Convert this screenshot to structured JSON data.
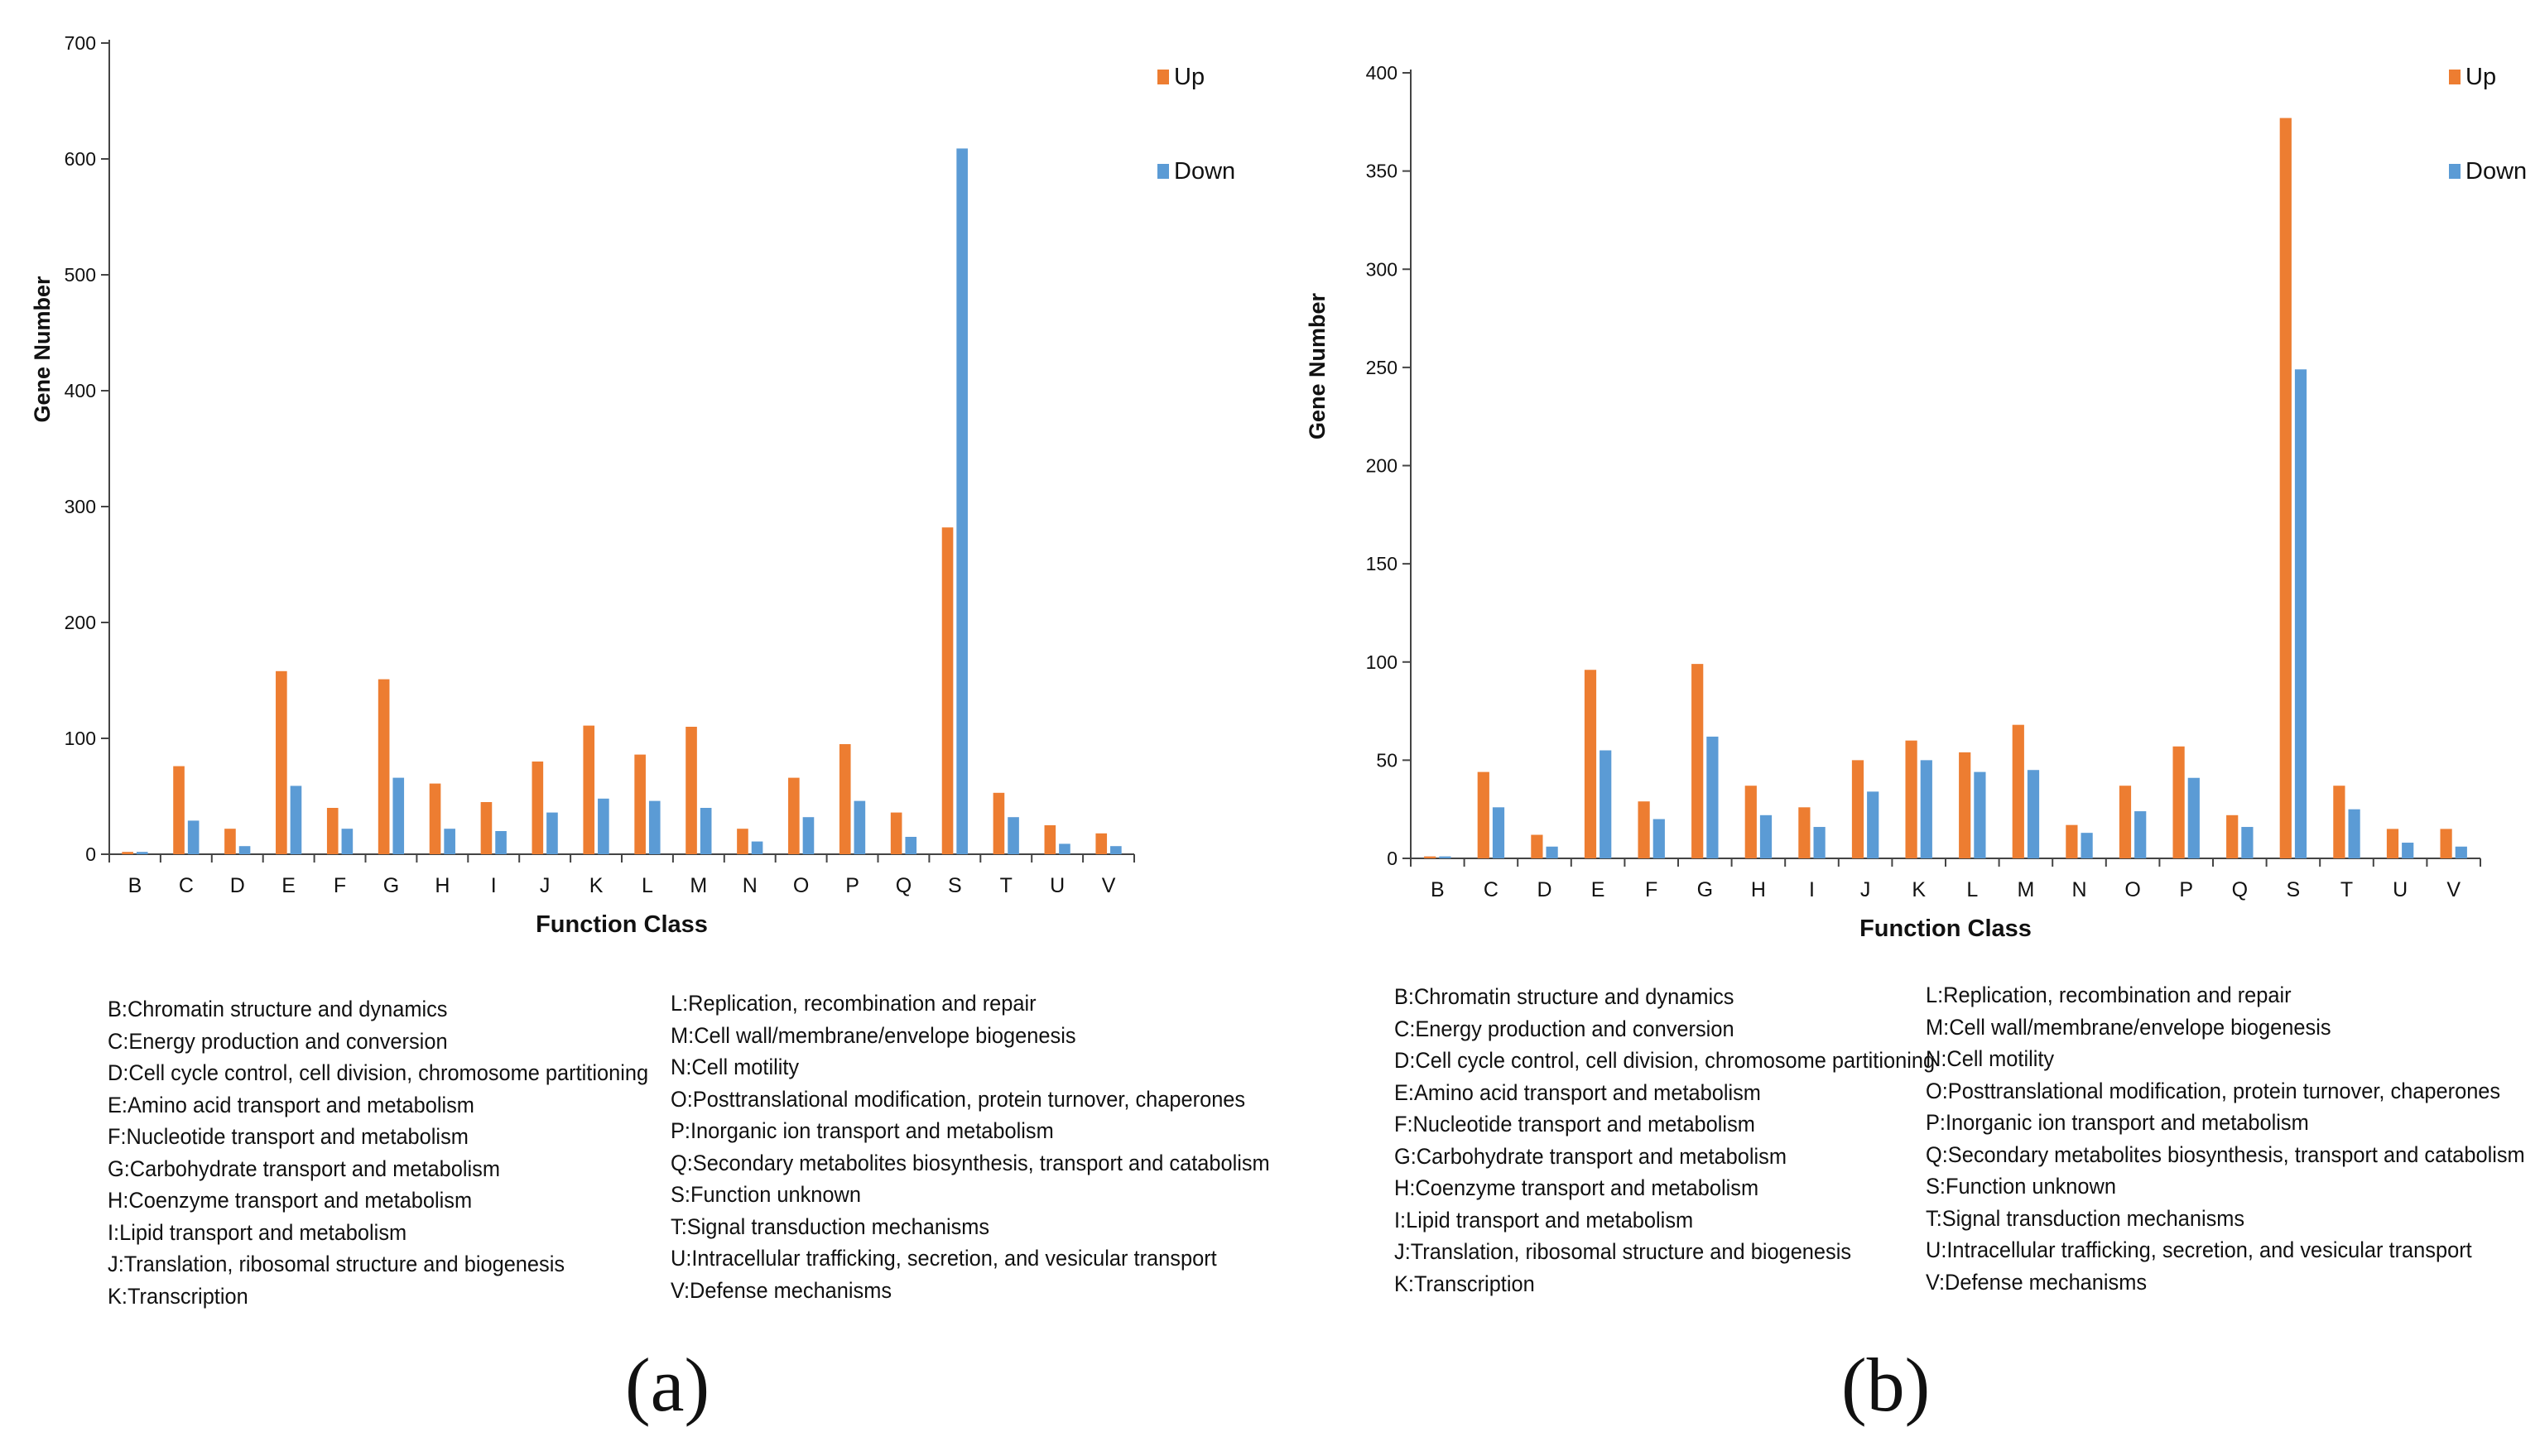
{
  "colors": {
    "up": "#ed7d31",
    "down": "#5b9bd5",
    "axis": "#444444",
    "text": "#111111"
  },
  "chart_data": [
    {
      "type": "bar",
      "panel": "(a)",
      "title": "",
      "xlabel": "Function Class",
      "ylabel": "Gene Number",
      "ylim": [
        0,
        700
      ],
      "yticks": [
        0,
        100,
        200,
        300,
        400,
        500,
        600,
        700
      ],
      "grid": false,
      "legend_position": "top-right",
      "categories": [
        "B",
        "C",
        "D",
        "E",
        "F",
        "G",
        "H",
        "I",
        "J",
        "K",
        "L",
        "M",
        "N",
        "O",
        "P",
        "Q",
        "S",
        "T",
        "U",
        "V"
      ],
      "series": [
        {
          "name": "Up",
          "values": [
            2,
            76,
            22,
            158,
            40,
            151,
            61,
            45,
            80,
            111,
            86,
            110,
            22,
            66,
            95,
            36,
            282,
            53,
            25,
            18
          ]
        },
        {
          "name": "Down",
          "values": [
            2,
            29,
            7,
            59,
            22,
            66,
            22,
            20,
            36,
            48,
            46,
            40,
            11,
            32,
            46,
            15,
            609,
            32,
            9,
            7
          ]
        }
      ]
    },
    {
      "type": "bar",
      "panel": "(b)",
      "title": "",
      "xlabel": "Function Class",
      "ylabel": "Gene Number",
      "ylim": [
        0,
        400
      ],
      "yticks": [
        0,
        50,
        100,
        150,
        200,
        250,
        300,
        350,
        400
      ],
      "grid": false,
      "legend_position": "top-right",
      "categories": [
        "B",
        "C",
        "D",
        "E",
        "F",
        "G",
        "H",
        "I",
        "J",
        "K",
        "L",
        "M",
        "N",
        "O",
        "P",
        "Q",
        "S",
        "T",
        "U",
        "V"
      ],
      "series": [
        {
          "name": "Up",
          "values": [
            1,
            44,
            12,
            96,
            29,
            99,
            37,
            26,
            50,
            60,
            54,
            68,
            17,
            37,
            57,
            22,
            377,
            37,
            15,
            15
          ]
        },
        {
          "name": "Down",
          "values": [
            1,
            26,
            6,
            55,
            20,
            62,
            22,
            16,
            34,
            50,
            44,
            45,
            13,
            24,
            41,
            16,
            249,
            25,
            8,
            6
          ]
        }
      ]
    }
  ],
  "legend": {
    "col1": [
      "B:Chromatin structure and dynamics",
      "C:Energy production and conversion",
      "D:Cell cycle control, cell division, chromosome partitioning",
      "E:Amino acid transport and metabolism",
      "F:Nucleotide transport and metabolism",
      "G:Carbohydrate transport and metabolism",
      "H:Coenzyme transport and metabolism",
      "I:Lipid transport and metabolism",
      "J:Translation, ribosomal structure and biogenesis",
      "K:Transcription"
    ],
    "col2": [
      "L:Replication, recombination and repair",
      "M:Cell wall/membrane/envelope biogenesis",
      "N:Cell motility",
      "O:Posttranslational modification, protein turnover, chaperones",
      "P:Inorganic ion transport and metabolism",
      "Q:Secondary metabolites biosynthesis, transport and catabolism",
      "S:Function unknown",
      "T:Signal transduction mechanisms",
      "U:Intracellular trafficking, secretion, and vesicular transport",
      "V:Defense mechanisms"
    ]
  },
  "labels": {
    "a": "(a)",
    "b": "(b)"
  }
}
